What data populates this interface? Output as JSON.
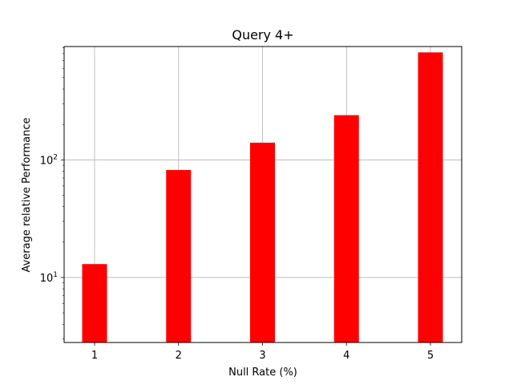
{
  "chart_data": {
    "type": "bar",
    "title": "Query 4+",
    "xlabel": "Null Rate (%)",
    "ylabel": "Average relative Performance",
    "categories": [
      "1",
      "2",
      "3",
      "4",
      "5"
    ],
    "series": [
      {
        "values": [
          13,
          82,
          140,
          240,
          820
        ]
      }
    ],
    "yscale": "log",
    "ylim": [
      2.8,
      920
    ],
    "ytick_labels": [
      {
        "value": 10,
        "base": "10",
        "exp": "1"
      },
      {
        "value": 100,
        "base": "10",
        "exp": "2"
      }
    ],
    "grid": true,
    "bar_color": "#ff0000",
    "grid_color": "#b0b0b0"
  }
}
